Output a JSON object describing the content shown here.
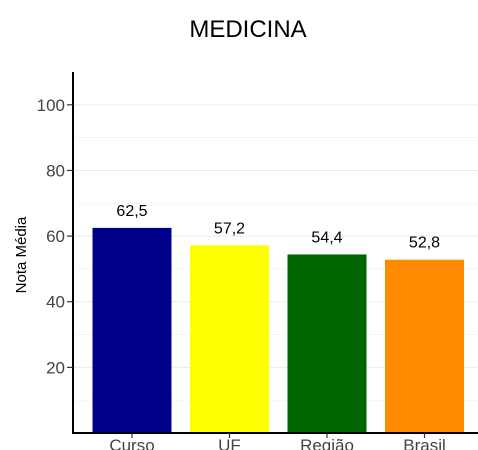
{
  "chart_data": {
    "type": "bar",
    "title": "MEDICINA",
    "ylabel": "Nota Média",
    "xlabel": "",
    "categories": [
      "Curso",
      "UF",
      "Região",
      "Brasil"
    ],
    "values": [
      62.5,
      57.2,
      54.4,
      52.8
    ],
    "value_labels": [
      "62,5",
      "57,2",
      "54,4",
      "52,8"
    ],
    "colors": [
      "#00008b",
      "#ffff00",
      "#006400",
      "#ff8c00"
    ],
    "ylim": [
      0,
      110
    ],
    "yticks": [
      20,
      40,
      60,
      80,
      100
    ],
    "grid": true,
    "legend": "none"
  }
}
